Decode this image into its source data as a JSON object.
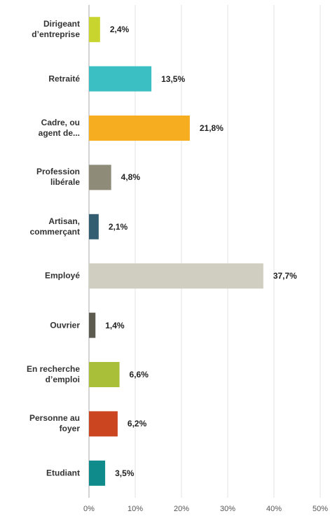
{
  "chart_data": {
    "type": "bar",
    "orientation": "horizontal",
    "categories": [
      "Dirigeant\nd’entreprise",
      "Retraité",
      "Cadre, ou\nagent de...",
      "Profession\nlibérale",
      "Artisan,\ncommerçant",
      "Employé",
      "Ouvrier",
      "En recherche\nd’emploi",
      "Personne au\nfoyer",
      "Etudiant"
    ],
    "values": [
      2.4,
      13.5,
      21.8,
      4.8,
      2.1,
      37.7,
      1.4,
      6.6,
      6.2,
      3.5
    ],
    "value_labels": [
      "2,4%",
      "13,5%",
      "21,8%",
      "4,8%",
      "2,1%",
      "37,7%",
      "1,4%",
      "6,6%",
      "6,2%",
      "3,5%"
    ],
    "colors": [
      "#c9d52f",
      "#3bbfc3",
      "#f6ad1f",
      "#8e8c78",
      "#335e72",
      "#d0cec0",
      "#5d5b4f",
      "#a9bf3a",
      "#cb4521",
      "#0e8b8a"
    ],
    "xlim": [
      0,
      50
    ],
    "xticks": [
      {
        "value": 0,
        "label": "0%"
      },
      {
        "value": 10,
        "label": "10%"
      },
      {
        "value": 20,
        "label": "20%"
      },
      {
        "value": 30,
        "label": "30%"
      },
      {
        "value": 40,
        "label": "40%"
      },
      {
        "value": 50,
        "label": "50%"
      }
    ],
    "grid": true
  }
}
